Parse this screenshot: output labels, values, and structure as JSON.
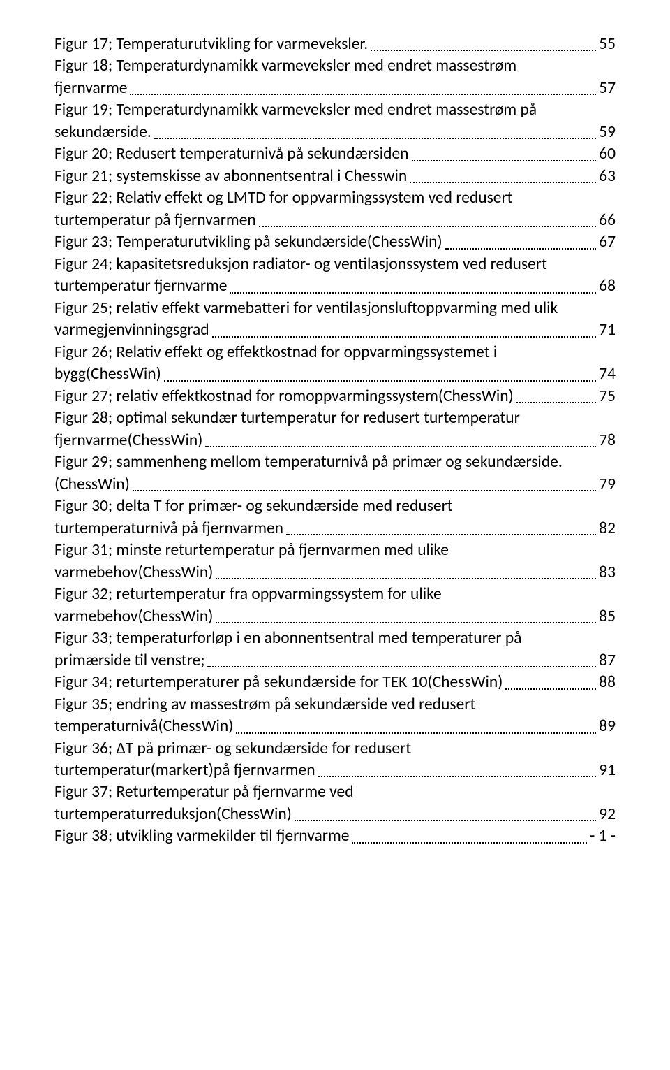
{
  "entries": [
    {
      "lines": [
        "Figur 17; Temperaturutvikling for varmeveksler."
      ],
      "page": "55"
    },
    {
      "lines": [
        "Figur 18; Temperaturdynamikk varmeveksler med endret massestrøm",
        "fjernvarme"
      ],
      "page": "57"
    },
    {
      "lines": [
        "Figur 19; Temperaturdynamikk varmeveksler med endret massestrøm på",
        "sekundærside."
      ],
      "page": "59"
    },
    {
      "lines": [
        "Figur 20; Redusert temperaturnivå på sekundærsiden"
      ],
      "page": "60"
    },
    {
      "lines": [
        "Figur 21; systemskisse av abonnentsentral i Chesswin"
      ],
      "page": "63"
    },
    {
      "lines": [
        "Figur 22; Relativ effekt og LMTD for oppvarmingssystem ved redusert",
        "turtemperatur på fjernvarmen"
      ],
      "page": "66"
    },
    {
      "lines": [
        "Figur 23; Temperaturutvikling på sekundærside(ChessWin)"
      ],
      "page": "67"
    },
    {
      "lines": [
        "Figur 24; kapasitetsreduksjon radiator- og ventilasjonssystem ved redusert",
        "turtemperatur fjernvarme"
      ],
      "page": "68"
    },
    {
      "lines": [
        "Figur 25; relativ effekt varmebatteri for ventilasjonsluftoppvarming med ulik",
        "varmegjenvinningsgrad"
      ],
      "page": "71"
    },
    {
      "lines": [
        "Figur 26; Relativ effekt og effektkostnad for oppvarmingssystemet i",
        "bygg(ChessWin)"
      ],
      "page": "74"
    },
    {
      "lines": [
        "Figur 27; relativ effektkostnad for romoppvarmingssystem(ChessWin)"
      ],
      "page": "75"
    },
    {
      "lines": [
        "Figur 28; optimal sekundær turtemperatur for redusert turtemperatur",
        "fjernvarme(ChessWin)"
      ],
      "page": "78"
    },
    {
      "lines": [
        "Figur 29; sammenheng mellom temperaturnivå på primær og sekundærside.",
        "(ChessWin)"
      ],
      "page": "79"
    },
    {
      "lines": [
        "Figur 30; delta T for primær- og sekundærside med redusert",
        "turtemperaturnivå på fjernvarmen"
      ],
      "page": "82"
    },
    {
      "lines": [
        "Figur 31; minste returtemperatur på fjernvarmen med ulike",
        "varmebehov(ChessWin)"
      ],
      "page": "83"
    },
    {
      "lines": [
        "Figur 32; returtemperatur fra oppvarmingssystem for ulike",
        "varmebehov(ChessWin)"
      ],
      "page": "85"
    },
    {
      "lines": [
        "Figur 33; temperaturforløp i en abonnentsentral med temperaturer på",
        "primærside til venstre;"
      ],
      "page": "87"
    },
    {
      "lines": [
        "Figur 34; returtemperaturer på sekundærside for TEK 10(ChessWin)"
      ],
      "page": "88"
    },
    {
      "lines": [
        "Figur 35; endring av massestrøm på sekundærside ved redusert",
        "temperaturnivå(ChessWin)"
      ],
      "page": "89"
    },
    {
      "lines": [
        "Figur 36; ΔT på primær- og sekundærside for redusert",
        "turtemperatur(markert)på fjernvarmen"
      ],
      "page": "91"
    },
    {
      "lines": [
        "Figur 37; Returtemperatur på fjernvarme ved",
        "turtemperaturreduksjon(ChessWin)"
      ],
      "page": "92"
    },
    {
      "lines": [
        "Figur 38; utvikling varmekilder til fjernvarme"
      ],
      "page": "- 1 -"
    }
  ]
}
